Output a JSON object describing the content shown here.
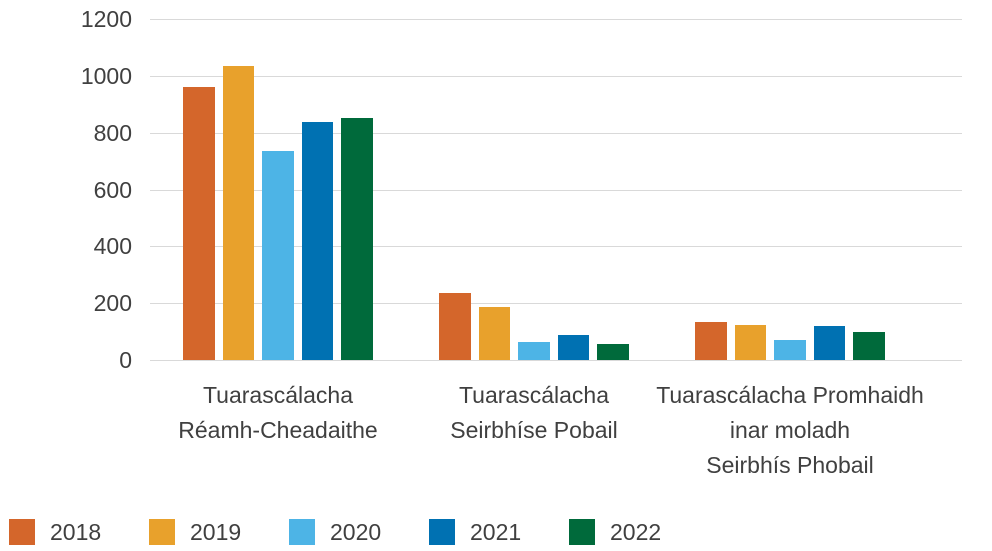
{
  "chart_data": {
    "type": "bar",
    "categories": [
      "Tuarascálacha\nRéamh-Cheadaithe",
      "Tuarascálacha\nSeirbhíse Pobail",
      "Tuarascálacha Promhaidh\ninar moladh\nSeirbhís Phobail"
    ],
    "series": [
      {
        "name": "2018",
        "color": "#D4662B",
        "values": [
          960,
          235,
          135
        ]
      },
      {
        "name": "2019",
        "color": "#E8A12C",
        "values": [
          1035,
          188,
          123
        ]
      },
      {
        "name": "2020",
        "color": "#4DB4E6",
        "values": [
          735,
          62,
          69
        ]
      },
      {
        "name": "2021",
        "color": "#0071B2",
        "values": [
          837,
          87,
          119
        ]
      },
      {
        "name": "2022",
        "color": "#006A3B",
        "values": [
          851,
          56,
          100
        ]
      }
    ],
    "ylim": [
      0,
      1200
    ],
    "y_ticks": [
      0,
      200,
      400,
      600,
      800,
      1000,
      1200
    ],
    "grid": "horizontal",
    "legend": "bottom-left"
  }
}
